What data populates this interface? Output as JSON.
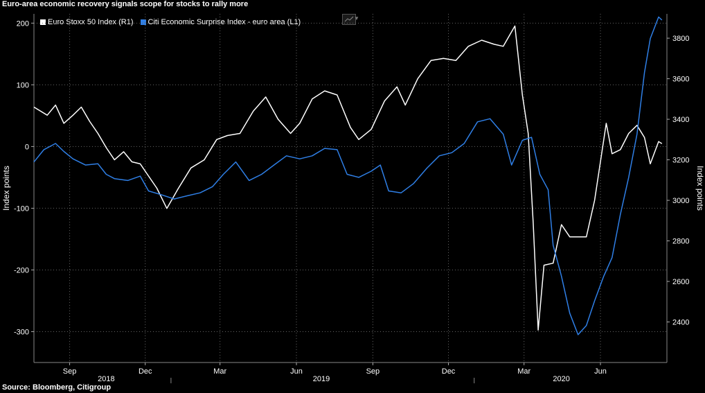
{
  "title": "Euro-area economic recovery signals scope for stocks to rally more",
  "source": "Source: Bloomberg, Citigroup",
  "legend": [
    {
      "label": "Euro Stoxx 50 Index (R1)",
      "color": "#ffffff"
    },
    {
      "label": "Citi Economic Surprise Index - euro area (L1)",
      "color": "#2f7fe6"
    }
  ],
  "chart_data": {
    "type": "line",
    "ylabel": "Index points",
    "y2label": "Index points",
    "ylim": [
      -350,
      215
    ],
    "y2lim": [
      2200,
      3920
    ],
    "yticks": [
      200,
      100,
      0,
      -100,
      -200,
      -300
    ],
    "y2ticks": [
      3800,
      3600,
      3400,
      3200,
      3000,
      2800,
      2600,
      2400
    ],
    "xlim": [
      "2018-07-20",
      "2020-08-20"
    ],
    "month_ticks": [
      "Sep",
      "Dec",
      "Mar",
      "Jun",
      "Sep",
      "Dec",
      "Mar",
      "Jun"
    ],
    "year_labels": [
      "2018",
      "2019",
      "2020"
    ],
    "grid": true,
    "series": [
      {
        "name": "Euro Stoxx 50 Index (R1)",
        "axis": "right",
        "color": "#ffffff",
        "points": [
          [
            "2018-07-20",
            3460
          ],
          [
            "2018-08-05",
            3420
          ],
          [
            "2018-08-15",
            3470
          ],
          [
            "2018-08-25",
            3380
          ],
          [
            "2018-09-05",
            3420
          ],
          [
            "2018-09-15",
            3460
          ],
          [
            "2018-09-25",
            3390
          ],
          [
            "2018-10-05",
            3330
          ],
          [
            "2018-10-15",
            3260
          ],
          [
            "2018-10-25",
            3200
          ],
          [
            "2018-11-05",
            3240
          ],
          [
            "2018-11-15",
            3190
          ],
          [
            "2018-11-25",
            3180
          ],
          [
            "2018-12-05",
            3120
          ],
          [
            "2018-12-15",
            3060
          ],
          [
            "2018-12-27",
            2960
          ],
          [
            "2019-01-10",
            3060
          ],
          [
            "2019-01-25",
            3160
          ],
          [
            "2019-02-10",
            3200
          ],
          [
            "2019-02-25",
            3300
          ],
          [
            "2019-03-10",
            3320
          ],
          [
            "2019-03-25",
            3330
          ],
          [
            "2019-04-10",
            3440
          ],
          [
            "2019-04-25",
            3510
          ],
          [
            "2019-05-10",
            3400
          ],
          [
            "2019-05-25",
            3330
          ],
          [
            "2019-06-05",
            3380
          ],
          [
            "2019-06-20",
            3500
          ],
          [
            "2019-07-05",
            3540
          ],
          [
            "2019-07-20",
            3520
          ],
          [
            "2019-08-05",
            3360
          ],
          [
            "2019-08-15",
            3300
          ],
          [
            "2019-08-30",
            3350
          ],
          [
            "2019-09-15",
            3490
          ],
          [
            "2019-09-30",
            3560
          ],
          [
            "2019-10-10",
            3470
          ],
          [
            "2019-10-25",
            3600
          ],
          [
            "2019-11-10",
            3690
          ],
          [
            "2019-11-25",
            3700
          ],
          [
            "2019-12-10",
            3690
          ],
          [
            "2019-12-25",
            3760
          ],
          [
            "2020-01-10",
            3790
          ],
          [
            "2020-01-25",
            3770
          ],
          [
            "2020-02-05",
            3760
          ],
          [
            "2020-02-19",
            3860
          ],
          [
            "2020-02-28",
            3520
          ],
          [
            "2020-03-06",
            3330
          ],
          [
            "2020-03-12",
            2890
          ],
          [
            "2020-03-18",
            2360
          ],
          [
            "2020-03-25",
            2680
          ],
          [
            "2020-04-05",
            2690
          ],
          [
            "2020-04-15",
            2880
          ],
          [
            "2020-04-25",
            2820
          ],
          [
            "2020-05-05",
            2820
          ],
          [
            "2020-05-15",
            2820
          ],
          [
            "2020-05-25",
            3000
          ],
          [
            "2020-06-08",
            3380
          ],
          [
            "2020-06-15",
            3230
          ],
          [
            "2020-06-25",
            3250
          ],
          [
            "2020-07-05",
            3330
          ],
          [
            "2020-07-15",
            3370
          ],
          [
            "2020-07-24",
            3310
          ],
          [
            "2020-07-31",
            3180
          ],
          [
            "2020-08-10",
            3290
          ],
          [
            "2020-08-14",
            3280
          ]
        ]
      },
      {
        "name": "Citi Economic Surprise Index - euro area (L1)",
        "axis": "left",
        "color": "#2f7fe6",
        "points": [
          [
            "2018-07-20",
            -25
          ],
          [
            "2018-08-01",
            -5
          ],
          [
            "2018-08-15",
            5
          ],
          [
            "2018-08-25",
            -8
          ],
          [
            "2018-09-05",
            -20
          ],
          [
            "2018-09-20",
            -30
          ],
          [
            "2018-10-05",
            -28
          ],
          [
            "2018-10-15",
            -45
          ],
          [
            "2018-10-25",
            -52
          ],
          [
            "2018-11-10",
            -55
          ],
          [
            "2018-11-25",
            -48
          ],
          [
            "2018-12-05",
            -72
          ],
          [
            "2018-12-20",
            -78
          ],
          [
            "2019-01-05",
            -85
          ],
          [
            "2019-01-20",
            -80
          ],
          [
            "2019-02-05",
            -75
          ],
          [
            "2019-02-20",
            -65
          ],
          [
            "2019-03-05",
            -45
          ],
          [
            "2019-03-20",
            -25
          ],
          [
            "2019-04-05",
            -55
          ],
          [
            "2019-04-20",
            -45
          ],
          [
            "2019-05-05",
            -30
          ],
          [
            "2019-05-20",
            -15
          ],
          [
            "2019-06-05",
            -20
          ],
          [
            "2019-06-20",
            -15
          ],
          [
            "2019-07-05",
            -3
          ],
          [
            "2019-07-20",
            -5
          ],
          [
            "2019-08-01",
            -45
          ],
          [
            "2019-08-15",
            -50
          ],
          [
            "2019-08-30",
            -40
          ],
          [
            "2019-09-10",
            -30
          ],
          [
            "2019-09-20",
            -72
          ],
          [
            "2019-10-05",
            -75
          ],
          [
            "2019-10-20",
            -60
          ],
          [
            "2019-11-05",
            -35
          ],
          [
            "2019-11-20",
            -15
          ],
          [
            "2019-12-05",
            -10
          ],
          [
            "2019-12-20",
            5
          ],
          [
            "2020-01-05",
            40
          ],
          [
            "2020-01-20",
            45
          ],
          [
            "2020-02-05",
            20
          ],
          [
            "2020-02-15",
            -30
          ],
          [
            "2020-02-28",
            10
          ],
          [
            "2020-03-10",
            15
          ],
          [
            "2020-03-20",
            -45
          ],
          [
            "2020-03-30",
            -70
          ],
          [
            "2020-04-05",
            -160
          ],
          [
            "2020-04-15",
            -210
          ],
          [
            "2020-04-25",
            -270
          ],
          [
            "2020-05-05",
            -305
          ],
          [
            "2020-05-15",
            -290
          ],
          [
            "2020-05-25",
            -250
          ],
          [
            "2020-06-05",
            -210
          ],
          [
            "2020-06-15",
            -180
          ],
          [
            "2020-06-25",
            -110
          ],
          [
            "2020-07-05",
            -50
          ],
          [
            "2020-07-15",
            20
          ],
          [
            "2020-07-24",
            120
          ],
          [
            "2020-07-31",
            175
          ],
          [
            "2020-08-10",
            210
          ],
          [
            "2020-08-14",
            205
          ]
        ]
      }
    ]
  }
}
